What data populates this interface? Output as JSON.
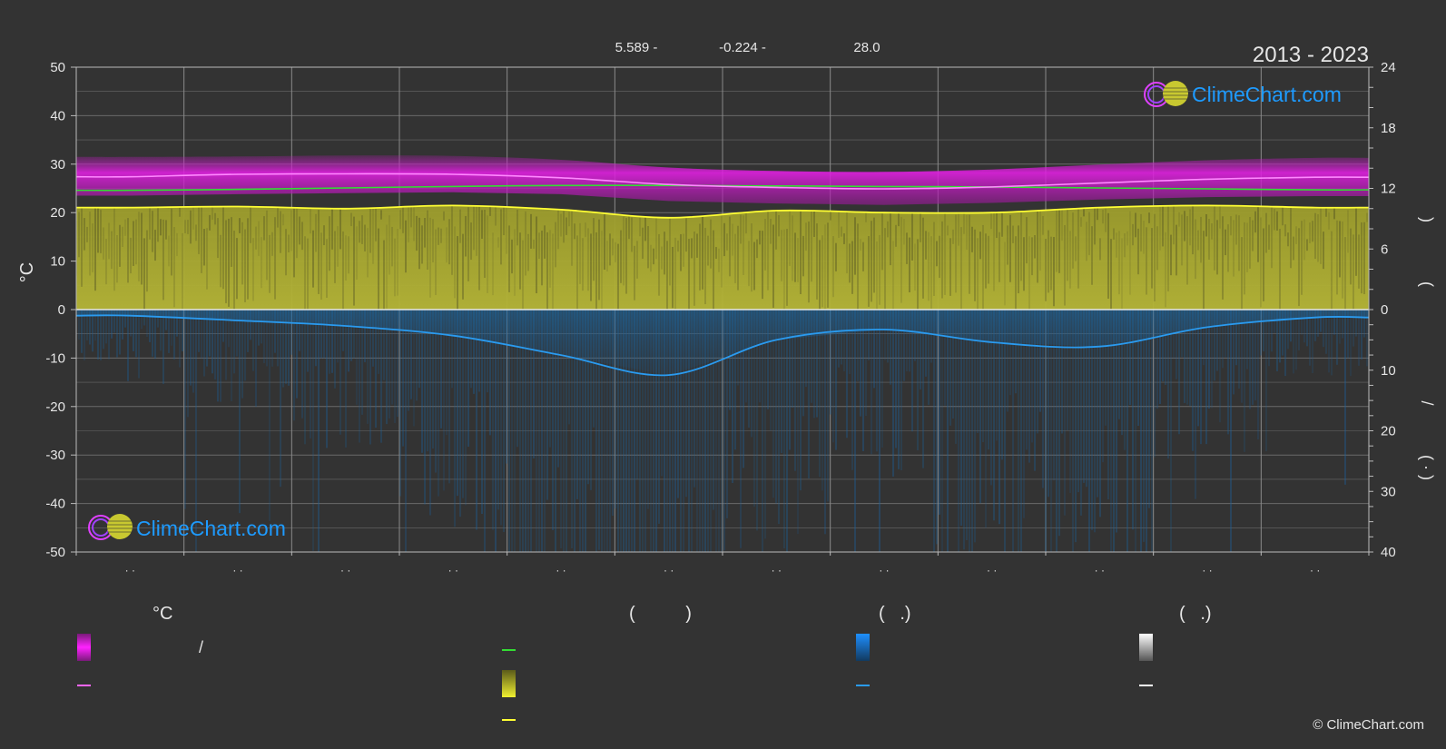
{
  "header": {
    "period": "2013 - 2023",
    "stat1": "5.589 -",
    "stat2": "-0.224 -",
    "stat3": "28.0"
  },
  "axes": {
    "left_unit": "°C",
    "right_sep_top": ")",
    "right_sep_mid": "(",
    "right_sep_slash": "/",
    "right_sep_bottom": "( · )"
  },
  "logo": {
    "text": "ClimeChart.com"
  },
  "copyright": "© ClimeChart.com",
  "legend": {
    "col1_header": "°C",
    "col1_slash": "/",
    "col2_header": "(          )",
    "col3_header": "(   .)",
    "col4_header": "(   .)"
  },
  "colors": {
    "background": "#333333",
    "max_temp_band": "#e020e0",
    "mean_temp_line": "#ff80ff",
    "sea_temp_line": "#33dd33",
    "sunshine_band": "#b8b834",
    "sunshine_line": "#ffff33",
    "rain_band": "#1a6fb0",
    "rain_line": "#2a9bf0",
    "grid": "#777777"
  },
  "chart_data": {
    "type": "line",
    "title": "2013 - 2023",
    "ylabel_left": "°C",
    "ylim_left": [
      -50,
      50
    ],
    "yticks_left": [
      50,
      40,
      30,
      20,
      10,
      0,
      -10,
      -20,
      -30,
      -40,
      -50
    ],
    "ylim_right_top": [
      0,
      24
    ],
    "yticks_right_top": [
      24,
      18,
      12,
      6,
      0
    ],
    "ylim_right_bottom": [
      0,
      40
    ],
    "yticks_right_bottom": [
      0,
      10,
      20,
      30,
      40
    ],
    "months": 12,
    "series": [
      {
        "key": "mean_temp",
        "unit": "°C",
        "values": [
          27.4,
          27.9,
          28.0,
          27.9,
          27.2,
          25.8,
          25.2,
          24.9,
          25.3,
          26.1,
          26.9,
          27.3
        ]
      },
      {
        "key": "temp_band_high",
        "unit": "°C",
        "values": [
          31.5,
          31.6,
          31.8,
          31.7,
          30.9,
          29.3,
          28.6,
          28.4,
          28.9,
          29.9,
          30.8,
          31.3
        ]
      },
      {
        "key": "temp_band_low",
        "unit": "°C",
        "values": [
          23.5,
          23.8,
          24.0,
          24.2,
          23.8,
          22.4,
          21.9,
          21.6,
          22.0,
          22.7,
          23.2,
          23.4
        ]
      },
      {
        "key": "sea_temp",
        "unit": "°C",
        "values": [
          24.6,
          24.8,
          25.1,
          25.4,
          25.6,
          25.6,
          25.5,
          25.4,
          25.3,
          25.1,
          24.9,
          24.7
        ]
      },
      {
        "key": "sunshine_hours",
        "unit": "h",
        "values": [
          10.1,
          10.2,
          10.0,
          10.3,
          9.9,
          9.1,
          9.8,
          9.6,
          9.6,
          10.1,
          10.3,
          10.1
        ]
      },
      {
        "key": "precipitation",
        "unit": "mm",
        "values": [
          1.0,
          1.8,
          2.7,
          4.3,
          7.5,
          10.8,
          5.0,
          3.3,
          5.4,
          6.1,
          2.9,
          1.3
        ]
      }
    ]
  }
}
